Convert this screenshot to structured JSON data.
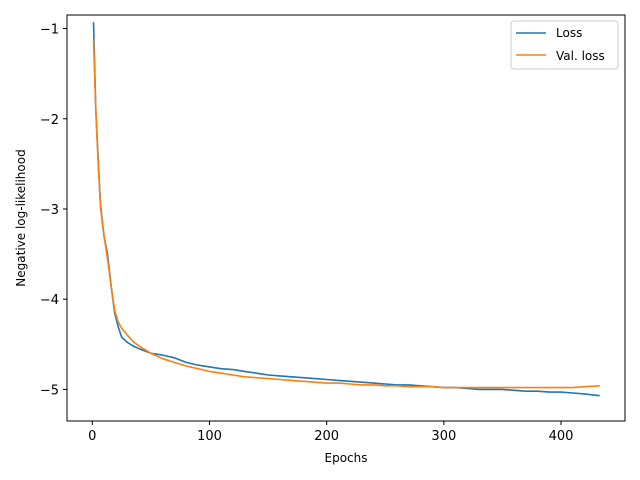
{
  "chart_data": {
    "type": "line",
    "title": "",
    "xlabel": "Epochs",
    "ylabel": "Negative log-likelihood",
    "xlim": [
      -21.6,
      454.6
    ],
    "ylim": [
      -5.35,
      -0.85
    ],
    "x_ticks": [
      0,
      100,
      200,
      300,
      400
    ],
    "y_ticks": [
      -1,
      -2,
      -3,
      -4,
      -5
    ],
    "x_tick_labels": [
      "0",
      "100",
      "200",
      "300",
      "400"
    ],
    "y_tick_labels": [
      "−1",
      "−2",
      "−3",
      "−4",
      "−5"
    ],
    "grid": false,
    "legend": {
      "position": "upper-right",
      "entries": [
        "Loss",
        "Val. loss"
      ]
    },
    "series": [
      {
        "name": "Loss",
        "color": "#1f77b4",
        "x": [
          1,
          3,
          5,
          7,
          10,
          13,
          16,
          19,
          22,
          25,
          30,
          35,
          40,
          50,
          60,
          70,
          80,
          90,
          100,
          110,
          120,
          130,
          140,
          150,
          160,
          170,
          180,
          190,
          200,
          210,
          220,
          230,
          240,
          250,
          260,
          270,
          280,
          290,
          300,
          310,
          320,
          330,
          340,
          350,
          360,
          370,
          380,
          390,
          400,
          410,
          420,
          433
        ],
        "y": [
          -0.93,
          -1.9,
          -2.45,
          -2.95,
          -3.3,
          -3.5,
          -3.85,
          -4.15,
          -4.3,
          -4.42,
          -4.48,
          -4.52,
          -4.55,
          -4.6,
          -4.62,
          -4.65,
          -4.7,
          -4.73,
          -4.75,
          -4.77,
          -4.78,
          -4.8,
          -4.82,
          -4.84,
          -4.85,
          -4.86,
          -4.87,
          -4.88,
          -4.89,
          -4.9,
          -4.91,
          -4.92,
          -4.93,
          -4.94,
          -4.95,
          -4.95,
          -4.96,
          -4.97,
          -4.98,
          -4.98,
          -4.99,
          -5.0,
          -5.0,
          -5.0,
          -5.01,
          -5.02,
          -5.02,
          -5.03,
          -5.03,
          -5.04,
          -5.05,
          -5.07
        ]
      },
      {
        "name": "Val. loss",
        "color": "#ff7f0e",
        "x": [
          1,
          3,
          5,
          7,
          10,
          13,
          16,
          19,
          22,
          25,
          30,
          35,
          40,
          50,
          60,
          70,
          80,
          90,
          100,
          110,
          120,
          130,
          140,
          150,
          160,
          170,
          180,
          190,
          200,
          210,
          220,
          230,
          240,
          250,
          260,
          270,
          280,
          290,
          300,
          310,
          320,
          330,
          340,
          350,
          360,
          370,
          380,
          390,
          400,
          410,
          420,
          433
        ],
        "y": [
          -1.12,
          -1.9,
          -2.5,
          -2.98,
          -3.3,
          -3.55,
          -3.85,
          -4.12,
          -4.25,
          -4.32,
          -4.4,
          -4.47,
          -4.52,
          -4.6,
          -4.66,
          -4.7,
          -4.74,
          -4.77,
          -4.8,
          -4.82,
          -4.84,
          -4.86,
          -4.87,
          -4.88,
          -4.89,
          -4.9,
          -4.91,
          -4.92,
          -4.93,
          -4.93,
          -4.94,
          -4.95,
          -4.95,
          -4.96,
          -4.96,
          -4.97,
          -4.97,
          -4.97,
          -4.98,
          -4.98,
          -4.98,
          -4.98,
          -4.98,
          -4.98,
          -4.98,
          -4.98,
          -4.98,
          -4.98,
          -4.98,
          -4.98,
          -4.97,
          -4.96
        ]
      }
    ]
  }
}
